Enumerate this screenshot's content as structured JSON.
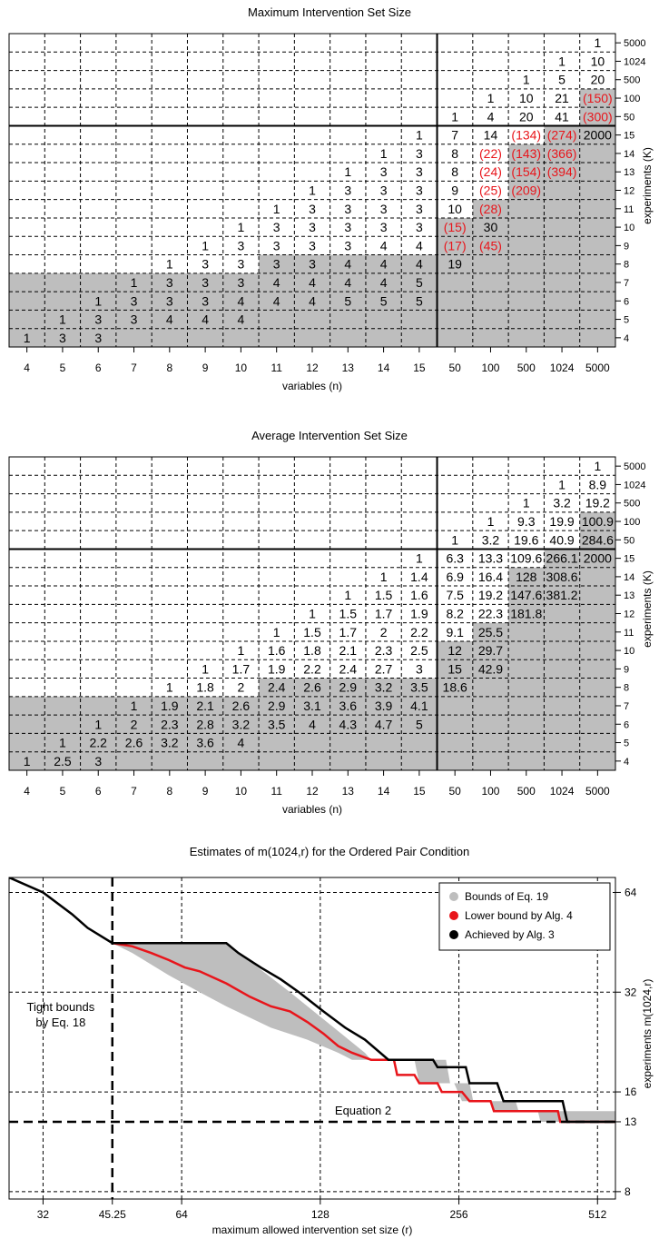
{
  "colors": {
    "red": "#e8151b",
    "gray": "#bebebe",
    "black": "#000000"
  },
  "chart_data": [
    {
      "type": "table",
      "title": "Maximum Intervention Set Size",
      "xlabel": "variables (n)",
      "ylabel": "experiments (K)",
      "columns": [
        "4",
        "5",
        "6",
        "7",
        "8",
        "9",
        "10",
        "11",
        "12",
        "13",
        "14",
        "15",
        "50",
        "100",
        "500",
        "1024",
        "5000"
      ],
      "rows_bottom_to_top": [
        "4",
        "5",
        "6",
        "7",
        "8",
        "9",
        "10",
        "11",
        "12",
        "13",
        "14",
        "15",
        "50",
        "100",
        "500",
        "1024",
        "5000"
      ],
      "cells": [
        [
          "1",
          "3",
          "3",
          "",
          "",
          "",
          "",
          "",
          "",
          "",
          "",
          "",
          "",
          "",
          "",
          "",
          ""
        ],
        [
          "",
          "1",
          "3",
          "3",
          "4",
          "4",
          "4",
          "",
          "",
          "",
          "",
          "",
          "",
          "",
          "",
          "",
          ""
        ],
        [
          "",
          "",
          "1",
          "3",
          "3",
          "3",
          "4",
          "4",
          "4",
          "5",
          "5",
          "5",
          "",
          "",
          "",
          "",
          ""
        ],
        [
          "",
          "",
          "",
          "1",
          "3",
          "3",
          "3",
          "4",
          "4",
          "4",
          "4",
          "5",
          "",
          "",
          "",
          "",
          ""
        ],
        [
          "",
          "",
          "",
          "",
          "1",
          "3",
          "3",
          "3",
          "3",
          "4",
          "4",
          "4",
          "19",
          "",
          "",
          "",
          ""
        ],
        [
          "",
          "",
          "",
          "",
          "",
          "1",
          "3",
          "3",
          "3",
          "3",
          "4",
          "4",
          "(17)",
          "(45)",
          "",
          "",
          ""
        ],
        [
          "",
          "",
          "",
          "",
          "",
          "",
          "1",
          "3",
          "3",
          "3",
          "3",
          "3",
          "(15)",
          "30",
          "",
          "",
          ""
        ],
        [
          "",
          "",
          "",
          "",
          "",
          "",
          "",
          "1",
          "3",
          "3",
          "3",
          "3",
          "10",
          "(28)",
          "",
          "",
          ""
        ],
        [
          "",
          "",
          "",
          "",
          "",
          "",
          "",
          "",
          "1",
          "3",
          "3",
          "3",
          "9",
          "(25)",
          "(209)",
          "",
          ""
        ],
        [
          "",
          "",
          "",
          "",
          "",
          "",
          "",
          "",
          "",
          "1",
          "3",
          "3",
          "8",
          "(24)",
          "(154)",
          "(394)",
          ""
        ],
        [
          "",
          "",
          "",
          "",
          "",
          "",
          "",
          "",
          "",
          "",
          "1",
          "3",
          "8",
          "(22)",
          "(143)",
          "(366)",
          ""
        ],
        [
          "",
          "",
          "",
          "",
          "",
          "",
          "",
          "",
          "",
          "",
          "",
          "1",
          "7",
          "14",
          "(134)",
          "(274)",
          "2000"
        ],
        [
          "",
          "",
          "",
          "",
          "",
          "",
          "",
          "",
          "",
          "",
          "",
          "",
          "1",
          "4",
          "20",
          "41",
          "(300)"
        ],
        [
          "",
          "",
          "",
          "",
          "",
          "",
          "",
          "",
          "",
          "",
          "",
          "",
          "",
          "1",
          "10",
          "21",
          "(150)"
        ],
        [
          "",
          "",
          "",
          "",
          "",
          "",
          "",
          "",
          "",
          "",
          "",
          "",
          "",
          "",
          "1",
          "5",
          "20"
        ],
        [
          "",
          "",
          "",
          "",
          "",
          "",
          "",
          "",
          "",
          "",
          "",
          "",
          "",
          "",
          "",
          "1",
          "10"
        ],
        [
          "",
          "",
          "",
          "",
          "",
          "",
          "",
          "",
          "",
          "",
          "",
          "",
          "",
          "",
          "",
          "",
          "1"
        ]
      ],
      "gray_from_row": [
        4,
        4,
        4,
        4,
        4,
        4,
        4,
        5,
        5,
        5,
        5,
        5,
        7,
        8,
        11,
        12,
        14
      ]
    },
    {
      "type": "table",
      "title": "Average Intervention Set Size",
      "xlabel": "variables (n)",
      "ylabel": "experiments (K)",
      "columns": [
        "4",
        "5",
        "6",
        "7",
        "8",
        "9",
        "10",
        "11",
        "12",
        "13",
        "14",
        "15",
        "50",
        "100",
        "500",
        "1024",
        "5000"
      ],
      "rows_bottom_to_top": [
        "4",
        "5",
        "6",
        "7",
        "8",
        "9",
        "10",
        "11",
        "12",
        "13",
        "14",
        "15",
        "50",
        "100",
        "500",
        "1024",
        "5000"
      ],
      "cells": [
        [
          "1",
          "2.5",
          "3",
          "",
          "",
          "",
          "",
          "",
          "",
          "",
          "",
          "",
          "",
          "",
          "",
          "",
          ""
        ],
        [
          "",
          "1",
          "2.2",
          "2.6",
          "3.2",
          "3.6",
          "4",
          "",
          "",
          "",
          "",
          "",
          "",
          "",
          "",
          "",
          ""
        ],
        [
          "",
          "",
          "1",
          "2",
          "2.3",
          "2.8",
          "3.2",
          "3.5",
          "4",
          "4.3",
          "4.7",
          "5",
          "",
          "",
          "",
          "",
          ""
        ],
        [
          "",
          "",
          "",
          "1",
          "1.9",
          "2.1",
          "2.6",
          "2.9",
          "3.1",
          "3.6",
          "3.9",
          "4.1",
          "",
          "",
          "",
          "",
          ""
        ],
        [
          "",
          "",
          "",
          "",
          "1",
          "1.8",
          "2",
          "2.4",
          "2.6",
          "2.9",
          "3.2",
          "3.5",
          "18.6",
          "",
          "",
          "",
          ""
        ],
        [
          "",
          "",
          "",
          "",
          "",
          "1",
          "1.7",
          "1.9",
          "2.2",
          "2.4",
          "2.7",
          "3",
          "15",
          "42.9",
          "",
          "",
          ""
        ],
        [
          "",
          "",
          "",
          "",
          "",
          "",
          "1",
          "1.6",
          "1.8",
          "2.1",
          "2.3",
          "2.5",
          "12",
          "29.7",
          "",
          "",
          ""
        ],
        [
          "",
          "",
          "",
          "",
          "",
          "",
          "",
          "1",
          "1.5",
          "1.7",
          "2",
          "2.2",
          "9.1",
          "25.5",
          "",
          "",
          ""
        ],
        [
          "",
          "",
          "",
          "",
          "",
          "",
          "",
          "",
          "1",
          "1.5",
          "1.7",
          "1.9",
          "8.2",
          "22.3",
          "181.8",
          "",
          ""
        ],
        [
          "",
          "",
          "",
          "",
          "",
          "",
          "",
          "",
          "",
          "1",
          "1.5",
          "1.6",
          "7.5",
          "19.2",
          "147.6",
          "381.2",
          ""
        ],
        [
          "",
          "",
          "",
          "",
          "",
          "",
          "",
          "",
          "",
          "",
          "1",
          "1.4",
          "6.9",
          "16.4",
          "128",
          "308.6",
          ""
        ],
        [
          "",
          "",
          "",
          "",
          "",
          "",
          "",
          "",
          "",
          "",
          "",
          "1",
          "6.3",
          "13.3",
          "109.6",
          "266.1",
          "2000"
        ],
        [
          "",
          "",
          "",
          "",
          "",
          "",
          "",
          "",
          "",
          "",
          "",
          "",
          "1",
          "3.2",
          "19.6",
          "40.9",
          "284.6"
        ],
        [
          "",
          "",
          "",
          "",
          "",
          "",
          "",
          "",
          "",
          "",
          "",
          "",
          "",
          "1",
          "9.3",
          "19.9",
          "100.9"
        ],
        [
          "",
          "",
          "",
          "",
          "",
          "",
          "",
          "",
          "",
          "",
          "",
          "",
          "",
          "",
          "1",
          "3.2",
          "19.2"
        ],
        [
          "",
          "",
          "",
          "",
          "",
          "",
          "",
          "",
          "",
          "",
          "",
          "",
          "",
          "",
          "",
          "1",
          "8.9"
        ],
        [
          "",
          "",
          "",
          "",
          "",
          "",
          "",
          "",
          "",
          "",
          "",
          "",
          "",
          "",
          "",
          "",
          "1"
        ]
      ],
      "gray_from_row": [
        4,
        4,
        4,
        4,
        4,
        4,
        4,
        5,
        5,
        5,
        5,
        5,
        7,
        8,
        11,
        12,
        14
      ]
    },
    {
      "type": "line",
      "title": "Estimates of m(1024,r) for the Ordered Pair Condition",
      "xlabel": "maximum allowed intervention set size (r)",
      "ylabel": "experiments m(1024,r)",
      "x_scale": "log",
      "y_scale": "log",
      "xlim": [
        27,
        560
      ],
      "ylim": [
        7.6,
        71
      ],
      "x_ticks": [
        32,
        45.25,
        64,
        128,
        256,
        512
      ],
      "y_ticks": [
        8,
        13,
        16,
        32,
        64
      ],
      "legend_position": "top-right",
      "legend": [
        "Bounds of Eq. 19",
        "Lower bound by Alg. 4",
        "Achieved by Alg. 3"
      ],
      "annotations": {
        "tight": [
          "Tight bounds",
          "by Eq. 18"
        ],
        "eq2": "Equation 2",
        "eq2_y": 13,
        "tight_x": 45.25
      },
      "band": {
        "upper": [
          [
            45.25,
            45
          ],
          [
            80,
            45
          ],
          [
            110,
            32
          ],
          [
            160,
            21
          ],
          [
            165,
            20
          ],
          [
            240,
            20
          ],
          [
            245,
            17
          ],
          [
            270,
            17
          ],
          [
            275,
            15
          ],
          [
            340,
            15
          ],
          [
            345,
            14
          ],
          [
            560,
            14
          ]
        ],
        "lower": [
          [
            45.25,
            45
          ],
          [
            50,
            42
          ],
          [
            60,
            36
          ],
          [
            70,
            32
          ],
          [
            80,
            29
          ],
          [
            100,
            25
          ],
          [
            120,
            23
          ],
          [
            140,
            21
          ],
          [
            150,
            20
          ],
          [
            205,
            20
          ],
          [
            210,
            17
          ],
          [
            250,
            17
          ],
          [
            260,
            15
          ],
          [
            300,
            15
          ],
          [
            305,
            14
          ],
          [
            380,
            14
          ],
          [
            385,
            13
          ],
          [
            560,
            13
          ]
        ]
      },
      "series": [
        {
          "name": "Lower bound by Alg. 4",
          "x": [
            45.25,
            50,
            55,
            60,
            65,
            70,
            80,
            90,
            100,
            110,
            120,
            130,
            140,
            150,
            165,
            185,
            188,
            205,
            210,
            230,
            235,
            260,
            270,
            300,
            305,
            420,
            425,
            560
          ],
          "y": [
            45,
            44,
            42,
            40,
            38,
            37,
            34,
            31,
            29,
            28,
            26,
            24,
            22,
            21,
            20,
            20,
            18,
            18,
            17,
            17,
            16,
            16,
            15,
            15,
            14,
            14,
            13,
            13
          ]
        },
        {
          "name": "Achieved by Alg. 3",
          "x": [
            27,
            32,
            37,
            40,
            45.25,
            80,
            85,
            95,
            105,
            115,
            130,
            145,
            160,
            180,
            225,
            230,
            265,
            270,
            310,
            320,
            430,
            440,
            560
          ],
          "y": [
            71,
            64,
            55,
            50,
            45,
            45,
            42,
            38,
            35,
            32,
            28,
            25,
            23,
            20,
            20,
            19,
            19,
            17,
            17,
            15,
            15,
            13,
            13
          ]
        }
      ]
    }
  ]
}
